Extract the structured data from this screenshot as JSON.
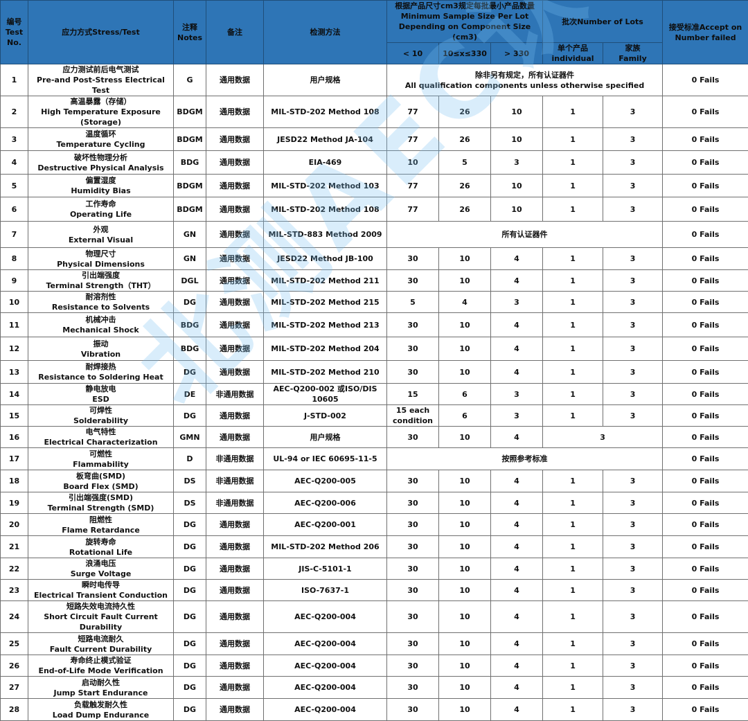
{
  "header": {
    "no": "编号\nTest\nNo.",
    "stress": "应力方式Stress/Test",
    "notes": "注释\nNotes",
    "remark": "备注",
    "method": "检测方法",
    "sample_group": "根据产品尺寸cm3规定每批最小产品数量\nMinimum Sample Size Per Lot\nDepending on Component Size (cm3)",
    "lt10": "< 10",
    "mid": "10≤x≤330",
    "gt330": "> 330",
    "lots_group": "批次Number of Lots",
    "individual": "单个产品\nindividual",
    "family": "家族\nFamily",
    "accept": "接受标准Accept on\nNumber failed"
  },
  "watermark": "北测AEC认证",
  "rows": [
    {
      "no": "1",
      "cn": "应力测试前后电气测试",
      "en": "Pre-and Post-Stress Electrical Test",
      "notes": "G",
      "remark": "通用数据",
      "method": "用户规格",
      "span_text": "除非另有规定，所有认证器件\nAll qualification components unless otherwise specified",
      "accept": "0 Fails"
    },
    {
      "no": "2",
      "cn": "高温暴露（存储）",
      "en": "High Temperature Exposure (Storage)",
      "notes": "BDGM",
      "remark": "通用数据",
      "method": "MIL-STD-202 Method 108",
      "lt10": "77",
      "mid": "26",
      "gt330": "10",
      "ind": "1",
      "fam": "3",
      "accept": "0 Fails"
    },
    {
      "no": "3",
      "cn": "温度循环",
      "en": "Temperature Cycling",
      "notes": "BDGM",
      "remark": "通用数据",
      "method": "JESD22 Method JA-104",
      "lt10": "77",
      "mid": "26",
      "gt330": "10",
      "ind": "1",
      "fam": "3",
      "accept": "0 Fails"
    },
    {
      "no": "4",
      "cn": "破坏性物理分析",
      "en": "Destructive Physical Analysis",
      "notes": "BDG",
      "remark": "通用数据",
      "method": "EIA-469",
      "lt10": "10",
      "mid": "5",
      "gt330": "3",
      "ind": "1",
      "fam": "3",
      "accept": "0 Fails"
    },
    {
      "no": "5",
      "cn": "偏置湿度",
      "en": "Humidity Bias",
      "notes": "BDGM",
      "remark": "通用数据",
      "method": "MIL-STD-202 Method 103",
      "lt10": "77",
      "mid": "26",
      "gt330": "10",
      "ind": "1",
      "fam": "3",
      "accept": "0 Fails"
    },
    {
      "no": "6",
      "cn": "工作寿命",
      "en": "Operating Life",
      "notes": "BDGM",
      "remark": "通用数据",
      "method": "MIL-STD-202 Method 108",
      "lt10": "77",
      "mid": "26",
      "gt330": "10",
      "ind": "1",
      "fam": "3",
      "accept": "0 Fails"
    },
    {
      "no": "7",
      "cn": "外观",
      "en": "External Visual",
      "notes": "GN",
      "remark": "通用数据",
      "method": "MIL-STD-883 Method 2009",
      "span_text": "所有认证器件",
      "accept": "0 Fails"
    },
    {
      "no": "8",
      "cn": "物理尺寸",
      "en": "Physical Dimensions",
      "notes": "GN",
      "remark": "通用数据",
      "method": "JESD22 Method JB-100",
      "lt10": "30",
      "mid": "10",
      "gt330": "4",
      "ind": "1",
      "fam": "3",
      "accept": "0 Fails"
    },
    {
      "no": "9",
      "cn": "引出端强度",
      "en": "Terminal Strength（THT）",
      "notes": "DGL",
      "remark": "通用数据",
      "method": "MIL-STD-202 Method 211",
      "lt10": "30",
      "mid": "10",
      "gt330": "4",
      "ind": "1",
      "fam": "3",
      "accept": "0 Fails"
    },
    {
      "no": "10",
      "cn": "耐溶剂性",
      "en": "Resistance to Solvents",
      "notes": "DG",
      "remark": "通用数据",
      "method": "MIL-STD-202 Method 215",
      "lt10": "5",
      "mid": "4",
      "gt330": "3",
      "ind": "1",
      "fam": "3",
      "accept": "0 Fails"
    },
    {
      "no": "11",
      "cn": "机械冲击",
      "en": "Mechanical Shock",
      "notes": "BDG",
      "remark": "通用数据",
      "method": "MIL-STD-202 Method 213",
      "lt10": "30",
      "mid": "10",
      "gt330": "4",
      "ind": "1",
      "fam": "3",
      "accept": "0 Fails"
    },
    {
      "no": "12",
      "cn": "振动",
      "en": "Vibration",
      "notes": "BDG",
      "remark": "通用数据",
      "method": "MIL-STD-202 Method 204",
      "lt10": "30",
      "mid": "10",
      "gt330": "4",
      "ind": "1",
      "fam": "3",
      "accept": "0 Fails"
    },
    {
      "no": "13",
      "cn": "耐焊接热",
      "en": "Resistance to Soldering Heat",
      "notes": "DG",
      "remark": "通用数据",
      "method": "MIL-STD-202 Method 210",
      "lt10": "30",
      "mid": "10",
      "gt330": "4",
      "ind": "1",
      "fam": "3",
      "accept": "0 Fails"
    },
    {
      "no": "14",
      "cn": "静电放电",
      "en": "ESD",
      "notes": "DE",
      "remark": "非通用数据",
      "method": "AEC-Q200-002 或ISO/DIS 10605",
      "lt10": "15",
      "mid": "6",
      "gt330": "3",
      "ind": "1",
      "fam": "3",
      "accept": "0 Fails"
    },
    {
      "no": "15",
      "cn": "可焊性",
      "en": "Solderability",
      "notes": "DG",
      "remark": "通用数据",
      "method": "J-STD-002",
      "lt10": "15 each\ncondition",
      "mid": "6",
      "gt330": "3",
      "ind": "1",
      "fam": "3",
      "accept": "0 Fails"
    },
    {
      "no": "16",
      "cn": "电气特性",
      "en": "Electrical Characterization",
      "notes": "GMN",
      "remark": "通用数据",
      "method": "用户规格",
      "lt10": "30",
      "mid": "10",
      "gt330": "4",
      "lots_merged": "3",
      "accept": "0 Fails"
    },
    {
      "no": "17",
      "cn": "可燃性",
      "en": "Flammability",
      "notes": "D",
      "remark": "非通用数据",
      "method": "UL-94 or IEC 60695-11-5",
      "span_text": "按照参考标准",
      "accept": "0 Fails"
    },
    {
      "no": "18",
      "cn": "板弯曲(SMD)",
      "en": "Board Flex (SMD)",
      "notes": "DS",
      "remark": "非通用数据",
      "method": "AEC-Q200-005",
      "lt10": "30",
      "mid": "10",
      "gt330": "4",
      "ind": "1",
      "fam": "3",
      "accept": "0 Fails"
    },
    {
      "no": "19",
      "cn": "引出端强度(SMD)",
      "en": "Terminal Strength (SMD)",
      "notes": "DS",
      "remark": "非通用数据",
      "method": "AEC-Q200-006",
      "lt10": "30",
      "mid": "10",
      "gt330": "4",
      "ind": "1",
      "fam": "3",
      "accept": "0 Fails"
    },
    {
      "no": "20",
      "cn": "阻燃性",
      "en": "Flame Retardance",
      "notes": "DG",
      "remark": "通用数据",
      "method": "AEC-Q200-001",
      "lt10": "30",
      "mid": "10",
      "gt330": "4",
      "ind": "1",
      "fam": "3",
      "accept": "0 Fails"
    },
    {
      "no": "21",
      "cn": "旋转寿命",
      "en": "Rotational Life",
      "notes": "DG",
      "remark": "通用数据",
      "method": "MIL-STD-202 Method 206",
      "lt10": "30",
      "mid": "10",
      "gt330": "4",
      "ind": "1",
      "fam": "3",
      "accept": "0 Fails"
    },
    {
      "no": "22",
      "cn": "浪涌电压",
      "en": "Surge Voltage",
      "notes": "DG",
      "remark": "通用数据",
      "method": "JIS-C-5101-1",
      "lt10": "30",
      "mid": "10",
      "gt330": "4",
      "ind": "1",
      "fam": "3",
      "accept": "0 Fails"
    },
    {
      "no": "23",
      "cn": "瞬时电传导",
      "en": "Electrical Transient Conduction",
      "notes": "DG",
      "remark": "通用数据",
      "method": "ISO-7637-1",
      "lt10": "30",
      "mid": "10",
      "gt330": "4",
      "ind": "1",
      "fam": "3",
      "accept": "0 Fails"
    },
    {
      "no": "24",
      "cn": "短路失效电流持久性",
      "en": "Short Circuit Fault Current Durability",
      "notes": "DG",
      "remark": "通用数据",
      "method": "AEC-Q200-004",
      "lt10": "30",
      "mid": "10",
      "gt330": "4",
      "ind": "1",
      "fam": "3",
      "accept": "0 Fails"
    },
    {
      "no": "25",
      "cn": "短路电流耐久",
      "en": "Fault Current Durability",
      "notes": "DG",
      "remark": "通用数据",
      "method": "AEC-Q200-004",
      "lt10": "30",
      "mid": "10",
      "gt330": "4",
      "ind": "1",
      "fam": "3",
      "accept": "0 Fails"
    },
    {
      "no": "26",
      "cn": "寿命终止模式验证",
      "en": "End-of-Life Mode Verification",
      "notes": "DG",
      "remark": "通用数据",
      "method": "AEC-Q200-004",
      "lt10": "30",
      "mid": "10",
      "gt330": "4",
      "ind": "1",
      "fam": "3",
      "accept": "0 Fails"
    },
    {
      "no": "27",
      "cn": "启动耐久性",
      "en": "Jump Start Endurance",
      "notes": "DG",
      "remark": "通用数据",
      "method": "AEC-Q200-004",
      "lt10": "30",
      "mid": "10",
      "gt330": "4",
      "ind": "1",
      "fam": "3",
      "accept": "0 Fails"
    },
    {
      "no": "28",
      "cn": "负载触发耐久性",
      "en": "Load Dump Endurance",
      "notes": "DG",
      "remark": "通用数据",
      "method": "AEC-Q200-004",
      "lt10": "30",
      "mid": "10",
      "gt330": "4",
      "ind": "1",
      "fam": "3",
      "accept": "0 Fails"
    }
  ]
}
